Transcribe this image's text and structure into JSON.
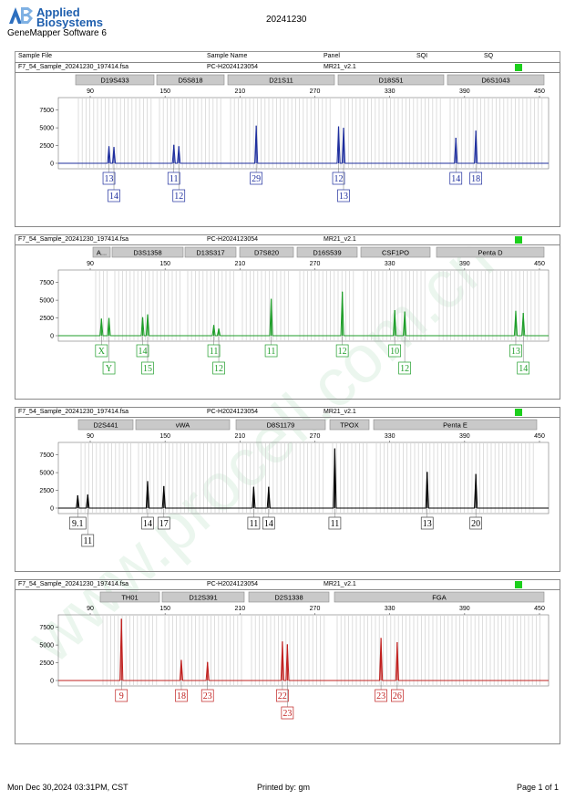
{
  "header": {
    "brand_line1": "Applied",
    "brand_line2": "Biosystems",
    "software": "GeneMapper Software 6",
    "date": "20241230"
  },
  "columns": [
    "Sample File",
    "Sample Name",
    "Panel",
    "SQI",
    "SQ"
  ],
  "scale": {
    "ticks": [
      90,
      150,
      210,
      270,
      330,
      390,
      450
    ],
    "y_ticks": [
      0,
      2500,
      5000,
      7500
    ]
  },
  "panels": [
    {
      "sample_file": "F7_54_Sample_20241230_197414.fsa",
      "sample_name": "PC-H2024123054",
      "panel": "MR21_v2.1",
      "color": "#1f2f9e",
      "ymax": 9000,
      "loci": [
        {
          "name": "D19S433",
          "start": 66,
          "end": 152
        },
        {
          "name": "D5S818",
          "start": 155,
          "end": 229
        },
        {
          "name": "D21S11",
          "start": 233,
          "end": 350
        },
        {
          "name": "D18S51",
          "start": 354,
          "end": 470
        },
        {
          "name": "D6S1043",
          "start": 474,
          "end": 580
        }
      ],
      "peaks": [
        {
          "size": 105,
          "height": 2400
        },
        {
          "size": 109,
          "height": 2300
        },
        {
          "size": 157,
          "height": 2600
        },
        {
          "size": 161,
          "height": 2400
        },
        {
          "size": 223,
          "height": 5300
        },
        {
          "size": 289,
          "height": 5200
        },
        {
          "size": 293,
          "height": 5000
        },
        {
          "size": 383,
          "height": 3600
        },
        {
          "size": 399,
          "height": 4600
        }
      ],
      "calls": [
        {
          "label": "13",
          "size": 105,
          "row": 1
        },
        {
          "label": "14",
          "size": 109,
          "row": 2
        },
        {
          "label": "11",
          "size": 157,
          "row": 1
        },
        {
          "label": "12",
          "size": 161,
          "row": 2
        },
        {
          "label": "29",
          "size": 223,
          "row": 1
        },
        {
          "label": "12",
          "size": 289,
          "row": 1
        },
        {
          "label": "13",
          "size": 293,
          "row": 2
        },
        {
          "label": "14",
          "size": 383,
          "row": 1
        },
        {
          "label": "18",
          "size": 399,
          "row": 1
        }
      ]
    },
    {
      "sample_file": "F7_54_Sample_20241230_197414.fsa",
      "sample_name": "PC-H2024123054",
      "panel": "MR21_v2.1",
      "color": "#1f9e2a",
      "ymax": 9000,
      "loci": [
        {
          "name": "A...",
          "start": 85,
          "end": 104
        },
        {
          "name": "D3S1358",
          "start": 106,
          "end": 184
        },
        {
          "name": "D13S317",
          "start": 186,
          "end": 242
        },
        {
          "name": "D7S820",
          "start": 246,
          "end": 305
        },
        {
          "name": "D16S539",
          "start": 309,
          "end": 375
        },
        {
          "name": "CSF1PO",
          "start": 379,
          "end": 455
        },
        {
          "name": "Penta D",
          "start": 462,
          "end": 580
        }
      ],
      "peaks": [
        {
          "size": 99,
          "height": 2400
        },
        {
          "size": 105,
          "height": 2500
        },
        {
          "size": 132,
          "height": 2600
        },
        {
          "size": 136,
          "height": 3000
        },
        {
          "size": 189,
          "height": 1500
        },
        {
          "size": 193,
          "height": 1000
        },
        {
          "size": 235,
          "height": 5200
        },
        {
          "size": 292,
          "height": 6200
        },
        {
          "size": 334,
          "height": 3600
        },
        {
          "size": 342,
          "height": 3400
        },
        {
          "size": 431,
          "height": 3500
        },
        {
          "size": 437,
          "height": 3200
        }
      ],
      "calls": [
        {
          "label": "X",
          "size": 99,
          "row": 1
        },
        {
          "label": "Y",
          "size": 105,
          "row": 2
        },
        {
          "label": "14",
          "size": 132,
          "row": 1
        },
        {
          "label": "15",
          "size": 136,
          "row": 2
        },
        {
          "label": "11",
          "size": 189,
          "row": 1
        },
        {
          "label": "12",
          "size": 193,
          "row": 2
        },
        {
          "label": "11",
          "size": 235,
          "row": 1
        },
        {
          "label": "12",
          "size": 292,
          "row": 1
        },
        {
          "label": "10",
          "size": 334,
          "row": 1
        },
        {
          "label": "12",
          "size": 342,
          "row": 2
        },
        {
          "label": "13",
          "size": 431,
          "row": 1
        },
        {
          "label": "14",
          "size": 437,
          "row": 2
        }
      ]
    },
    {
      "sample_file": "F7_54_Sample_20241230_197414.fsa",
      "sample_name": "PC-H2024123054",
      "panel": "MR21_v2.1",
      "color": "#000000",
      "ymax": 9000,
      "loci": [
        {
          "name": "D2S441",
          "start": 69,
          "end": 129
        },
        {
          "name": "vWA",
          "start": 132,
          "end": 235
        },
        {
          "name": "D8S1179",
          "start": 242,
          "end": 340
        },
        {
          "name": "TPOX",
          "start": 345,
          "end": 388
        },
        {
          "name": "Penta E",
          "start": 393,
          "end": 572
        }
      ],
      "peaks": [
        {
          "size": 80,
          "height": 1800
        },
        {
          "size": 88,
          "height": 1900
        },
        {
          "size": 136,
          "height": 3800
        },
        {
          "size": 149,
          "height": 3100
        },
        {
          "size": 221,
          "height": 3000
        },
        {
          "size": 233,
          "height": 3000
        },
        {
          "size": 286,
          "height": 8400
        },
        {
          "size": 360,
          "height": 5100
        },
        {
          "size": 399,
          "height": 4800
        }
      ],
      "calls": [
        {
          "label": "9.1",
          "size": 80,
          "row": 1
        },
        {
          "label": "11",
          "size": 88,
          "row": 2
        },
        {
          "label": "14",
          "size": 136,
          "row": 1
        },
        {
          "label": "17",
          "size": 149,
          "row": 1
        },
        {
          "label": "11",
          "size": 221,
          "row": 1
        },
        {
          "label": "14",
          "size": 233,
          "row": 1
        },
        {
          "label": "11",
          "size": 286,
          "row": 1
        },
        {
          "label": "13",
          "size": 360,
          "row": 1
        },
        {
          "label": "20",
          "size": 399,
          "row": 1
        }
      ]
    },
    {
      "sample_file": "F7_54_Sample_20241230_197414.fsa",
      "sample_name": "PC-H2024123054",
      "panel": "MR21_v2.1",
      "color": "#c0201f",
      "ymax": 9000,
      "loci": [
        {
          "name": "TH01",
          "start": 93,
          "end": 158
        },
        {
          "name": "D12S391",
          "start": 161,
          "end": 251
        },
        {
          "name": "D2S1338",
          "start": 256,
          "end": 344
        },
        {
          "name": "FGA",
          "start": 350,
          "end": 580
        }
      ],
      "peaks": [
        {
          "size": 115,
          "height": 8700
        },
        {
          "size": 163,
          "height": 2900
        },
        {
          "size": 184,
          "height": 2600
        },
        {
          "size": 244,
          "height": 5500
        },
        {
          "size": 248,
          "height": 5100
        },
        {
          "size": 323,
          "height": 6000
        },
        {
          "size": 336,
          "height": 5400
        }
      ],
      "calls": [
        {
          "label": "9",
          "size": 115,
          "row": 1
        },
        {
          "label": "18",
          "size": 163,
          "row": 1
        },
        {
          "label": "23",
          "size": 184,
          "row": 1
        },
        {
          "label": "22",
          "size": 244,
          "row": 1
        },
        {
          "label": "23",
          "size": 248,
          "row": 2
        },
        {
          "label": "23",
          "size": 323,
          "row": 1
        },
        {
          "label": "26",
          "size": 336,
          "row": 1
        }
      ]
    }
  ],
  "footer": {
    "datetime": "Mon Dec 30,2024 03:31PM, CST",
    "printed_by": "Printed by: gm",
    "page": "Page 1 of 1"
  },
  "watermark": "www.procell.com.cn"
}
